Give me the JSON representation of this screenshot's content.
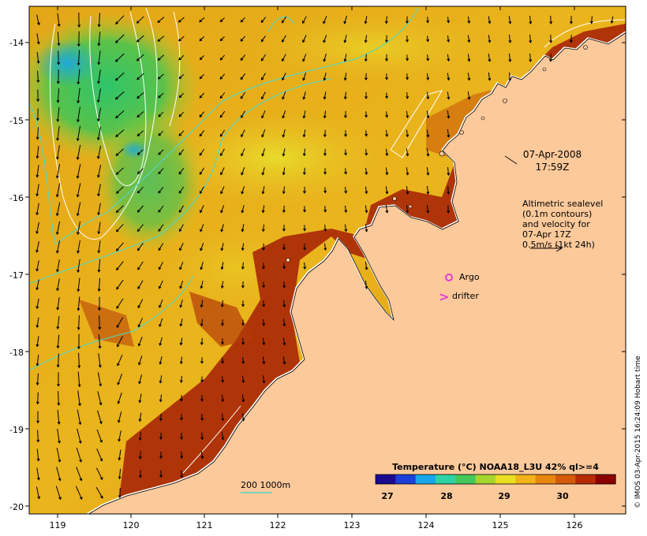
{
  "map": {
    "date_line1": "07-Apr-2008",
    "date_line2": "17:59Z",
    "altimetry_lines": [
      "Altimetric sealevel",
      "(0.1m contours)",
      "and velocity for",
      "07-Apr 17Z",
      "0.5m/s (1kt 24h)"
    ],
    "argo_label": "Argo",
    "drifter_label": "drifter",
    "drifter_symbol": ">",
    "depth_legend_label": "200  1000m",
    "credit": "© IMOS 03-Apr-2015 16:24:09 Hobart time",
    "colors": {
      "land": "#fcc99b",
      "depth_contour": "#4fd8c8",
      "argo": "#e23bd6",
      "drifter": "#e23bd6"
    }
  },
  "axes": {
    "lon_ticks": [
      "119",
      "120",
      "121",
      "122",
      "123",
      "124",
      "125",
      "126"
    ],
    "lat_ticks": [
      "-14",
      "-15",
      "-16",
      "-17",
      "-18",
      "-19",
      "-20"
    ]
  },
  "colorbar": {
    "title": "Temperature (°C) NOAA18_L3U 42% ql>=4",
    "ticks": [
      "27",
      "28",
      "29",
      "30"
    ],
    "colors": [
      "#1a0a8f",
      "#1d3fd9",
      "#18a6e8",
      "#2ed3a5",
      "#44c95a",
      "#a6d62e",
      "#e8e021",
      "#f2b318",
      "#e8860f",
      "#d45a0a",
      "#b82a05",
      "#8c0000"
    ]
  }
}
